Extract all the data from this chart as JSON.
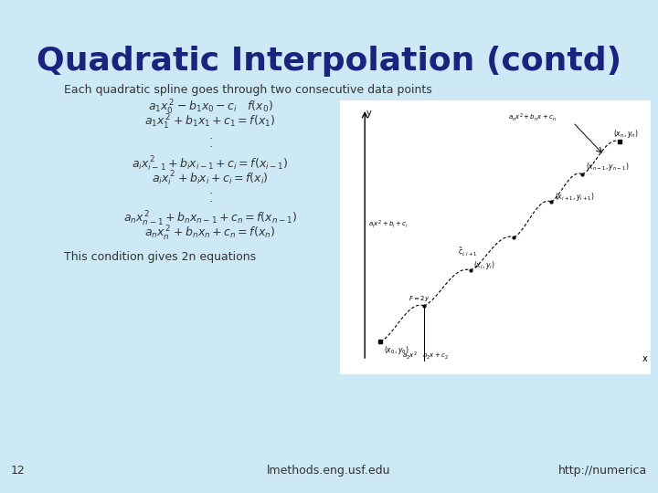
{
  "background_color": "#cce9f5",
  "title": "Quadratic Interpolation (contd)",
  "title_color": "#1a237e",
  "title_fontsize": 26,
  "title_fontweight": "bold",
  "slide_number": "12",
  "footer_left": "lmethods.eng.usf.edu",
  "footer_right": "http://numerica",
  "footer_color": "#333333",
  "footer_fontsize": 9,
  "body_text_color": "#333333",
  "intro_text": "Each quadratic spline goes through two consecutive data points",
  "intro_fontsize": 9,
  "eq_fontsize": 9,
  "conclusion_text": "This condition gives 2n equations",
  "graph_bg": "#f0f0f0"
}
